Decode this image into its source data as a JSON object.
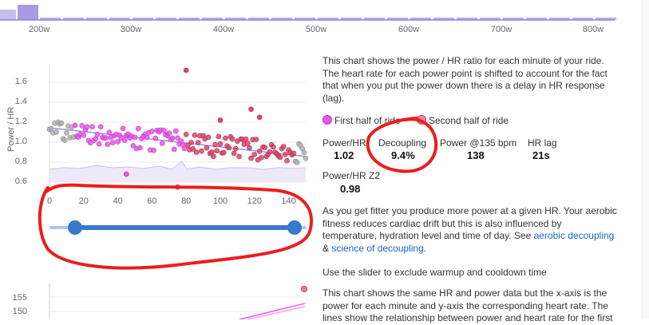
{
  "histogram": {
    "x_ticks": [
      "200w",
      "300w",
      "400w",
      "500w",
      "600w",
      "700w",
      "800w"
    ],
    "bar_color": "#9b87e0"
  },
  "chart": {
    "y_axis_label": "Power / HR",
    "y_ticks": [
      "1.6",
      "1.4",
      "1.2",
      "1.0",
      "0.8",
      "0.6"
    ],
    "x_ticks": [
      "0",
      "20",
      "40",
      "60",
      "80",
      "100",
      "120",
      "140"
    ],
    "first_half_color": "#ee55ee",
    "second_half_color": "#e0456a",
    "excluded_color": "#b0b0b0",
    "trend_color": "#9d8fe0"
  },
  "slider": {
    "start_value": 15,
    "end_value": 143,
    "track_color": "#a8c8ee",
    "active_color": "#3a78cc"
  },
  "description": {
    "intro": "This chart shows the power / HR ratio for each minute of your ride. The heart rate for each power point is shifted to account for the fact that when you put the power down there is a delay in HR response (lag).",
    "legend_first": "First half of ride",
    "legend_second": "Second half of ride",
    "fitness_text": "As you get fitter you produce more power at a given HR. Your aerobic fitness reduces cardiac drift but this is also influenced by temperature, hydration level and time of day. See ",
    "link_aerobic": "aerobic decoupling",
    "amp": " & ",
    "link_science": "science of decoupling",
    "period": ".",
    "slider_hint": "Use the slider to exclude warmup and cooldown time",
    "second_chart_intro": "This chart shows the same HR and power data but the x-axis is the power for each minute and y-axis the corresponding heart rate. The lines show the relationship between power and heart rate for the first"
  },
  "stats": [
    {
      "label": "Power/HR",
      "value": "1.02"
    },
    {
      "label": "Decoupling",
      "value": "9.4%"
    },
    {
      "label": "Power @135 bpm",
      "value": "138"
    },
    {
      "label": "HR lag",
      "value": "21s"
    },
    {
      "label": "Power/HR Z2",
      "value": "0.98"
    }
  ],
  "annotation_color": "#ee1c1c",
  "second_chart": {
    "y_ticks": [
      "155",
      "150"
    ]
  }
}
